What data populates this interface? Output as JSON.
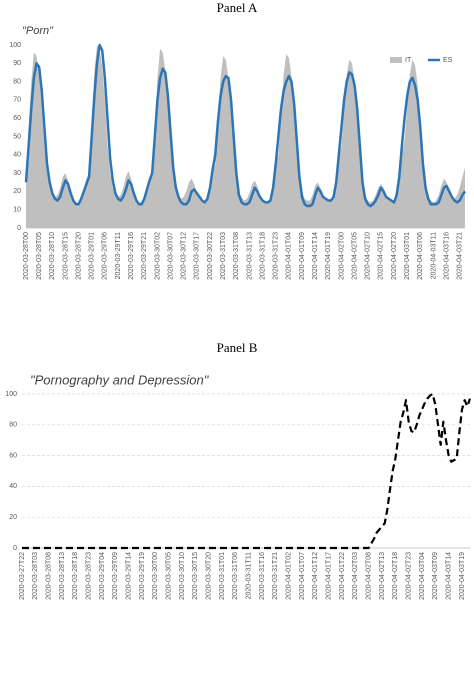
{
  "chart_data": [
    {
      "type": "area",
      "title": "Panel A",
      "subtitle": "\"Porn\"",
      "categories": [
        "2020-03-28T00",
        null,
        null,
        null,
        null,
        "2020-03-28T05",
        null,
        null,
        null,
        null,
        "2020-03-28T10",
        null,
        null,
        null,
        null,
        "2020-03-28T15",
        null,
        null,
        null,
        null,
        "2020-03-28T20",
        null,
        null,
        null,
        null,
        "2020-03-29T01",
        null,
        null,
        null,
        null,
        "2020-03-29T06",
        null,
        null,
        null,
        null,
        "2020-03-29T11",
        null,
        null,
        null,
        null,
        "2020-03-29T16",
        null,
        null,
        null,
        null,
        "2020-03-29T21",
        null,
        null,
        null,
        null,
        "2020-03-30T02",
        null,
        null,
        null,
        null,
        "2020-03-30T07",
        null,
        null,
        null,
        null,
        "2020-03-30T12",
        null,
        null,
        null,
        null,
        "2020-03-30T17",
        null,
        null,
        null,
        null,
        "2020-03-30T22",
        null,
        null,
        null,
        null,
        "2020-03-31T03",
        null,
        null,
        null,
        null,
        "2020-03-31T08",
        null,
        null,
        null,
        null,
        "2020-03-31T13",
        null,
        null,
        null,
        null,
        "2020-03-31T18",
        null,
        null,
        null,
        null,
        "2020-03-31T23",
        null,
        null,
        null,
        null,
        "2020-04-01T04",
        null,
        null,
        null,
        null,
        "2020-04-01T09",
        null,
        null,
        null,
        null,
        "2020-04-01T14",
        null,
        null,
        null,
        null,
        "2020-04-01T19",
        null,
        null,
        null,
        null,
        "2020-04-02T00",
        null,
        null,
        null,
        null,
        "2020-04-02T05",
        null,
        null,
        null,
        null,
        "2020-04-02T10",
        null,
        null,
        null,
        null,
        "2020-04-02T15",
        null,
        null,
        null,
        null,
        "2020-04-02T20",
        null,
        null,
        null,
        null,
        "2020-04-03T01",
        null,
        null,
        null,
        null,
        "2020-04-03T06",
        null,
        null,
        null,
        null,
        "2020-04-03T11",
        null,
        null,
        null,
        null,
        "2020-04-03T16",
        null,
        null,
        null,
        null,
        "2020-04-03T21",
        null,
        null
      ],
      "series": [
        {
          "name": "IT",
          "style": "area",
          "color": "#bfbfbf",
          "values": [
            25,
            55,
            80,
            96,
            94,
            84,
            66,
            45,
            30,
            22,
            19,
            17,
            18,
            22,
            28,
            30,
            26,
            20,
            16,
            14,
            14,
            17,
            22,
            27,
            30,
            58,
            85,
            100,
            98,
            88,
            70,
            45,
            30,
            22,
            19,
            17,
            18,
            22,
            28,
            31,
            27,
            20,
            16,
            14,
            14,
            17,
            22,
            27,
            30,
            55,
            82,
            98,
            96,
            86,
            68,
            45,
            30,
            22,
            18,
            16,
            17,
            20,
            25,
            27,
            24,
            19,
            16,
            14,
            14,
            17,
            22,
            30,
            35,
            60,
            82,
            94,
            92,
            82,
            64,
            42,
            28,
            20,
            17,
            15,
            16,
            19,
            24,
            26,
            23,
            18,
            16,
            14,
            14,
            17,
            24,
            34,
            40,
            62,
            84,
            95,
            93,
            83,
            65,
            42,
            28,
            20,
            16,
            15,
            15,
            18,
            23,
            25,
            22,
            18,
            16,
            15,
            15,
            18,
            26,
            38,
            45,
            65,
            84,
            92,
            90,
            80,
            62,
            40,
            26,
            18,
            15,
            14,
            15,
            18,
            22,
            24,
            22,
            18,
            16,
            15,
            15,
            19,
            28,
            40,
            48,
            66,
            84,
            92,
            89,
            78,
            60,
            38,
            24,
            17,
            15,
            14,
            15,
            18,
            23,
            27,
            25,
            20,
            17,
            16,
            18,
            22,
            28,
            33
          ]
        },
        {
          "name": "ES",
          "style": "line",
          "color": "#2e75b6",
          "values": [
            25,
            45,
            65,
            82,
            90,
            88,
            75,
            55,
            35,
            25,
            19,
            16,
            15,
            17,
            22,
            26,
            24,
            19,
            15,
            13,
            13,
            16,
            20,
            24,
            28,
            50,
            72,
            90,
            100,
            97,
            82,
            60,
            38,
            26,
            19,
            16,
            15,
            17,
            21,
            26,
            24,
            19,
            15,
            13,
            13,
            16,
            21,
            26,
            30,
            50,
            70,
            82,
            87,
            85,
            72,
            52,
            33,
            22,
            17,
            14,
            13,
            13,
            15,
            20,
            21,
            19,
            17,
            15,
            14,
            16,
            22,
            32,
            40,
            58,
            72,
            80,
            83,
            82,
            70,
            50,
            30,
            18,
            14,
            13,
            13,
            14,
            18,
            22,
            20,
            17,
            15,
            14,
            14,
            15,
            22,
            35,
            50,
            65,
            75,
            80,
            83,
            80,
            68,
            48,
            28,
            17,
            13,
            12,
            12,
            13,
            18,
            22,
            20,
            17,
            16,
            15,
            15,
            17,
            25,
            40,
            55,
            70,
            80,
            85,
            84,
            78,
            65,
            45,
            25,
            16,
            13,
            12,
            13,
            15,
            18,
            22,
            20,
            17,
            16,
            15,
            14,
            18,
            28,
            45,
            60,
            72,
            80,
            82,
            78,
            70,
            55,
            35,
            22,
            16,
            13,
            13,
            13,
            14,
            18,
            22,
            23,
            20,
            17,
            15,
            14,
            15,
            18,
            20
          ]
        }
      ],
      "ylim": [
        0,
        100
      ],
      "yticks": [
        0,
        10,
        20,
        30,
        40,
        50,
        60,
        70,
        80,
        90,
        100
      ],
      "grid": false,
      "legend": "upper right"
    },
    {
      "type": "line",
      "title": "Panel B",
      "subtitle": "\"Pornography and Depression\"",
      "categories": [
        "2020-03-27T22",
        null,
        null,
        null,
        null,
        "2020-03-28T03",
        null,
        null,
        null,
        null,
        "2020-03-28T08",
        null,
        null,
        null,
        null,
        "2020-03-28T13",
        null,
        null,
        null,
        null,
        "2020-03-28T18",
        null,
        null,
        null,
        null,
        "2020-03-28T23",
        null,
        null,
        null,
        null,
        "2020-03-29T04",
        null,
        null,
        null,
        null,
        "2020-03-29T09",
        null,
        null,
        null,
        null,
        "2020-03-29T14",
        null,
        null,
        null,
        null,
        "2020-03-29T19",
        null,
        null,
        null,
        null,
        "2020-03-30T00",
        null,
        null,
        null,
        null,
        "2020-03-30T05",
        null,
        null,
        null,
        null,
        "2020-03-30T10",
        null,
        null,
        null,
        null,
        "2020-03-30T15",
        null,
        null,
        null,
        null,
        "2020-03-30T20",
        null,
        null,
        null,
        null,
        "2020-03-31T01",
        null,
        null,
        null,
        null,
        "2020-03-31T06",
        null,
        null,
        null,
        null,
        "2020-03-31T11",
        null,
        null,
        null,
        null,
        "2020-03-31T16",
        null,
        null,
        null,
        null,
        "2020-03-31T21",
        null,
        null,
        null,
        null,
        "2020-04-01T02",
        null,
        null,
        null,
        null,
        "2020-04-01T07",
        null,
        null,
        null,
        null,
        "2020-04-01T12",
        null,
        null,
        null,
        null,
        "2020-04-01T17",
        null,
        null,
        null,
        null,
        "2020-04-01T22",
        null,
        null,
        null,
        null,
        "2020-04-02T03",
        null,
        null,
        null,
        null,
        "2020-04-02T08",
        null,
        null,
        null,
        null,
        "2020-04-02T13",
        null,
        null,
        null,
        null,
        "2020-04-02T18",
        null,
        null,
        null,
        null,
        "2020-04-02T23",
        null,
        null,
        null,
        null,
        "2020-04-03T04",
        null,
        null,
        null,
        null,
        "2020-04-03T09",
        null,
        null,
        null,
        null,
        "2020-04-03T14",
        null,
        null,
        null,
        null,
        "2020-04-03T19",
        null,
        null,
        null
      ],
      "values": [
        0,
        0,
        0,
        0,
        0,
        0,
        0,
        0,
        0,
        0,
        0,
        0,
        0,
        0,
        0,
        0,
        0,
        0,
        0,
        0,
        0,
        0,
        0,
        0,
        0,
        0,
        0,
        0,
        0,
        0,
        0,
        0,
        0,
        0,
        0,
        0,
        0,
        0,
        0,
        0,
        0,
        0,
        0,
        0,
        0,
        0,
        0,
        0,
        0,
        0,
        0,
        0,
        0,
        0,
        0,
        0,
        0,
        0,
        0,
        0,
        0,
        0,
        0,
        0,
        0,
        0,
        0,
        0,
        0,
        0,
        0,
        0,
        0,
        0,
        0,
        0,
        0,
        0,
        0,
        0,
        0,
        0,
        0,
        0,
        0,
        0,
        0,
        0,
        0,
        0,
        0,
        0,
        0,
        0,
        0,
        0,
        0,
        0,
        0,
        0,
        0,
        0,
        0,
        0,
        0,
        0,
        0,
        0,
        0,
        0,
        0,
        0,
        0,
        0,
        0,
        0,
        0,
        0,
        0,
        0,
        0,
        0,
        0,
        0,
        0,
        0,
        0,
        0,
        0,
        0,
        0,
        3,
        6,
        10,
        12,
        14,
        16,
        25,
        38,
        50,
        58,
        70,
        82,
        88,
        96,
        82,
        76,
        75,
        80,
        86,
        90,
        94,
        97,
        99,
        100,
        93,
        80,
        67,
        82,
        70,
        60,
        56,
        57,
        58,
        75,
        90,
        96,
        92,
        97
      ],
      "color": "#000000",
      "dashed": true,
      "ylim": [
        0,
        100
      ],
      "yticks": [
        0,
        20,
        40,
        60,
        80,
        100
      ],
      "grid": true
    }
  ]
}
